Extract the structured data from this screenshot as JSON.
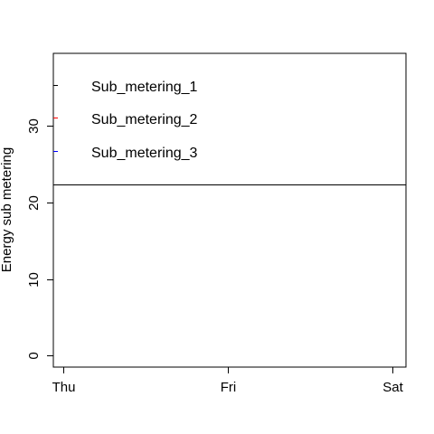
{
  "chart_data": {
    "type": "line",
    "ylabel": "Energy sub metering",
    "x_ticks": [
      "Thu",
      "Fri",
      "Sat"
    ],
    "y_ticks": [
      0,
      10,
      20,
      30
    ],
    "ylim": [
      -1.5,
      39.5
    ],
    "xlim": [
      -0.06,
      2.08
    ],
    "grid": false,
    "legend_position": "top-left",
    "series": [
      {
        "name": "Sub_metering_1",
        "color": "#000000",
        "values": []
      },
      {
        "name": "Sub_metering_2",
        "color": "#ff0000",
        "values": []
      },
      {
        "name": "Sub_metering_3",
        "color": "#0000ff",
        "values": []
      }
    ]
  }
}
